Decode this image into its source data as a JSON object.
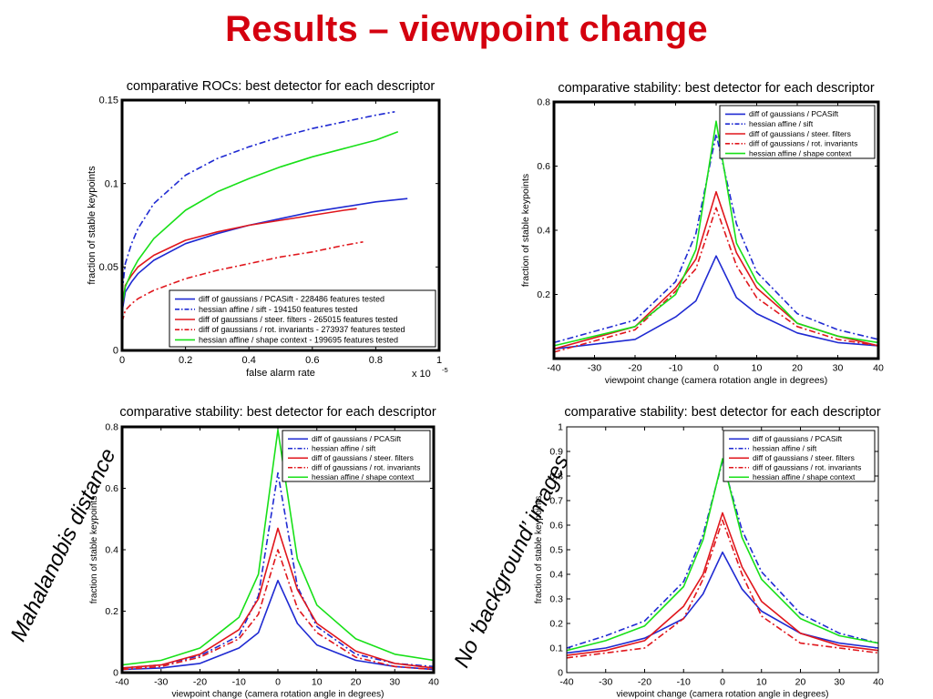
{
  "slide": {
    "title": "Results – viewpoint change",
    "note_left": "Mahalanobis distance",
    "note_right": "No ‘background’ images"
  },
  "colors": {
    "title_red": "#d4000f",
    "blue": "#1f2ad2",
    "red": "#e0161c",
    "green": "#18e018",
    "axis": "#000000"
  },
  "chart_data": [
    {
      "type": "line",
      "title": "comparative ROCs: best detector for each descriptor",
      "xlabel": "false alarm rate",
      "ylabel": "fraction of stable keypoints",
      "x_multiplier": "x 10",
      "x_multiplier_exp": "-5",
      "xlim": [
        0,
        1
      ],
      "ylim": [
        0,
        0.15
      ],
      "xticks": [
        0,
        0.2,
        0.4,
        0.6,
        0.8,
        1
      ],
      "xtick_labels": [
        "0",
        "0.2",
        "0.4",
        "0.6",
        "0.8",
        "1"
      ],
      "yticks": [
        0,
        0.05,
        0.1,
        0.15
      ],
      "ytick_labels": [
        "0",
        "0.05",
        "0.1",
        "0.15"
      ],
      "frame": "thick",
      "legend": "bottom-right",
      "series": [
        {
          "name": "diff of gaussians / PCASift - 228486 features tested",
          "color": "#1f2ad2",
          "dash": "solid",
          "x": [
            0,
            0.01,
            0.03,
            0.05,
            0.1,
            0.2,
            0.3,
            0.4,
            0.5,
            0.6,
            0.7,
            0.8,
            0.9
          ],
          "y": [
            0.023,
            0.035,
            0.041,
            0.046,
            0.054,
            0.064,
            0.07,
            0.075,
            0.079,
            0.083,
            0.086,
            0.089,
            0.091
          ]
        },
        {
          "name": "hessian affine / sift - 194150 features tested",
          "color": "#1f2ad2",
          "dash": "dashdot",
          "x": [
            0,
            0.01,
            0.03,
            0.05,
            0.1,
            0.2,
            0.3,
            0.4,
            0.5,
            0.6,
            0.7,
            0.8,
            0.86
          ],
          "y": [
            0.035,
            0.052,
            0.064,
            0.073,
            0.088,
            0.105,
            0.115,
            0.122,
            0.128,
            0.133,
            0.137,
            0.141,
            0.143
          ]
        },
        {
          "name": "diff of gaussians / steer. filters - 265015 features tested",
          "color": "#e0161c",
          "dash": "solid",
          "x": [
            0,
            0.01,
            0.03,
            0.05,
            0.1,
            0.2,
            0.3,
            0.4,
            0.5,
            0.6,
            0.7,
            0.74
          ],
          "y": [
            0.025,
            0.039,
            0.045,
            0.05,
            0.057,
            0.066,
            0.071,
            0.075,
            0.078,
            0.081,
            0.084,
            0.085
          ]
        },
        {
          "name": "diff of gaussians / rot. invariants - 273937 features tested",
          "color": "#e0161c",
          "dash": "dashdot",
          "x": [
            0,
            0.01,
            0.03,
            0.05,
            0.1,
            0.2,
            0.3,
            0.4,
            0.5,
            0.6,
            0.7,
            0.76
          ],
          "y": [
            0.017,
            0.024,
            0.028,
            0.031,
            0.036,
            0.043,
            0.048,
            0.052,
            0.056,
            0.059,
            0.063,
            0.065
          ]
        },
        {
          "name": "hessian affine / shape context - 199695 features tested",
          "color": "#18e018",
          "dash": "solid",
          "x": [
            0,
            0.01,
            0.03,
            0.05,
            0.1,
            0.2,
            0.3,
            0.4,
            0.5,
            0.6,
            0.7,
            0.8,
            0.87
          ],
          "y": [
            0.026,
            0.038,
            0.047,
            0.054,
            0.067,
            0.084,
            0.095,
            0.103,
            0.11,
            0.116,
            0.121,
            0.126,
            0.131
          ]
        }
      ]
    },
    {
      "type": "line",
      "title": "comparative stability: best detector for each descriptor",
      "xlabel": "viewpoint change (camera rotation angle in degrees)",
      "ylabel": "fraction of stable keypoints",
      "xlim": [
        -40,
        40
      ],
      "ylim": [
        0,
        0.8
      ],
      "xticks": [
        -40,
        -30,
        -20,
        -10,
        0,
        10,
        20,
        30,
        40
      ],
      "xtick_labels": [
        "-40",
        "-30",
        "-20",
        "-10",
        "0",
        "10",
        "20",
        "30",
        "40"
      ],
      "yticks": [
        0.2,
        0.4,
        0.6,
        0.8
      ],
      "ytick_labels": [
        "0.2",
        "0.4",
        "0.6",
        "0.8"
      ],
      "frame": "thick",
      "legend": "top-right",
      "x": [
        -40,
        -20,
        -10,
        -5,
        0,
        5,
        10,
        20,
        30,
        40
      ],
      "series": [
        {
          "name": "diff of gaussians / PCASift",
          "color": "#1f2ad2",
          "dash": "solid",
          "y": [
            0.03,
            0.06,
            0.13,
            0.18,
            0.32,
            0.19,
            0.14,
            0.08,
            0.05,
            0.04
          ]
        },
        {
          "name": "hessian affine / sift",
          "color": "#1f2ad2",
          "dash": "dashdot",
          "y": [
            0.05,
            0.12,
            0.24,
            0.39,
            0.7,
            0.42,
            0.27,
            0.14,
            0.09,
            0.06
          ]
        },
        {
          "name": "diff of gaussians / steer. filters",
          "color": "#e0161c",
          "dash": "solid",
          "y": [
            0.03,
            0.1,
            0.22,
            0.31,
            0.52,
            0.33,
            0.22,
            0.11,
            0.07,
            0.04
          ]
        },
        {
          "name": "diff of gaussians / rot. invariants",
          "color": "#e0161c",
          "dash": "dashdot",
          "y": [
            0.02,
            0.09,
            0.21,
            0.28,
            0.47,
            0.29,
            0.19,
            0.1,
            0.06,
            0.04
          ]
        },
        {
          "name": "hessian affine / shape context",
          "color": "#18e018",
          "dash": "solid",
          "y": [
            0.04,
            0.1,
            0.2,
            0.34,
            0.74,
            0.36,
            0.24,
            0.11,
            0.07,
            0.05
          ]
        }
      ]
    },
    {
      "type": "line",
      "title": "comparative stability: best detector for each descriptor",
      "xlabel": "viewpoint change (camera rotation angle in degrees)",
      "ylabel": "fraction of stable keypoints",
      "xlim": [
        -40,
        40
      ],
      "ylim": [
        0,
        0.8
      ],
      "xticks": [
        -40,
        -30,
        -20,
        -10,
        0,
        10,
        20,
        30,
        40
      ],
      "xtick_labels": [
        "-40",
        "-30",
        "-20",
        "-10",
        "0",
        "10",
        "20",
        "30",
        "40"
      ],
      "yticks": [
        0,
        0.2,
        0.4,
        0.6,
        0.8
      ],
      "ytick_labels": [
        "0",
        "0.2",
        "0.4",
        "0.6",
        "0.8"
      ],
      "frame": "thick",
      "legend": "top-right",
      "x": [
        -40,
        -30,
        -20,
        -10,
        -5,
        0,
        5,
        10,
        20,
        30,
        40
      ],
      "series": [
        {
          "name": "diff of gaussians / PCASift",
          "color": "#1f2ad2",
          "dash": "solid",
          "y": [
            0.01,
            0.015,
            0.03,
            0.08,
            0.13,
            0.3,
            0.16,
            0.09,
            0.04,
            0.02,
            0.01
          ]
        },
        {
          "name": "hessian affine / sift",
          "color": "#1f2ad2",
          "dash": "dashdot",
          "y": [
            0.015,
            0.025,
            0.055,
            0.12,
            0.25,
            0.65,
            0.28,
            0.15,
            0.06,
            0.03,
            0.02
          ]
        },
        {
          "name": "diff of gaussians / steer. filters",
          "color": "#e0161c",
          "dash": "solid",
          "y": [
            0.015,
            0.025,
            0.06,
            0.14,
            0.24,
            0.47,
            0.27,
            0.16,
            0.07,
            0.03,
            0.015
          ]
        },
        {
          "name": "diff of gaussians / rot. invariants",
          "color": "#e0161c",
          "dash": "dashdot",
          "y": [
            0.01,
            0.02,
            0.05,
            0.11,
            0.19,
            0.4,
            0.21,
            0.13,
            0.05,
            0.02,
            0.01
          ]
        },
        {
          "name": "hessian affine / shape context",
          "color": "#18e018",
          "dash": "solid",
          "y": [
            0.025,
            0.04,
            0.08,
            0.18,
            0.32,
            0.79,
            0.37,
            0.22,
            0.11,
            0.06,
            0.04
          ]
        }
      ]
    },
    {
      "type": "line",
      "title": "comparative stability: best detector for each descriptor",
      "xlabel": "viewpoint change (camera rotation angle in degrees)",
      "ylabel": "fraction of stable keypoints",
      "xlim": [
        -40,
        40
      ],
      "ylim": [
        0,
        1
      ],
      "xticks": [
        -40,
        -30,
        -20,
        -10,
        0,
        10,
        20,
        30,
        40
      ],
      "xtick_labels": [
        "-40",
        "-30",
        "-20",
        "-10",
        "0",
        "10",
        "20",
        "30",
        "40"
      ],
      "yticks": [
        0,
        0.1,
        0.2,
        0.3,
        0.4,
        0.5,
        0.6,
        0.7,
        0.8,
        0.9,
        1
      ],
      "ytick_labels": [
        "0",
        "0.1",
        "0.2",
        "0.3",
        "0.4",
        "0.5",
        "0.6",
        "0.7",
        "0.8",
        "0.9",
        "1"
      ],
      "frame": "thin",
      "legend": "top-right",
      "x": [
        -40,
        -30,
        -20,
        -10,
        -5,
        0,
        5,
        10,
        20,
        30,
        40
      ],
      "series": [
        {
          "name": "diff of gaussians / PCASift",
          "color": "#1f2ad2",
          "dash": "solid",
          "y": [
            0.08,
            0.1,
            0.14,
            0.22,
            0.32,
            0.49,
            0.34,
            0.25,
            0.16,
            0.12,
            0.1
          ]
        },
        {
          "name": "hessian affine / sift",
          "color": "#1f2ad2",
          "dash": "dashdot",
          "y": [
            0.1,
            0.15,
            0.21,
            0.37,
            0.56,
            0.86,
            0.58,
            0.41,
            0.24,
            0.16,
            0.12
          ]
        },
        {
          "name": "diff of gaussians / steer. filters",
          "color": "#e0161c",
          "dash": "solid",
          "y": [
            0.07,
            0.09,
            0.13,
            0.27,
            0.4,
            0.65,
            0.43,
            0.29,
            0.16,
            0.11,
            0.09
          ]
        },
        {
          "name": "diff of gaussians / rot. invariants",
          "color": "#e0161c",
          "dash": "dashdot",
          "y": [
            0.06,
            0.08,
            0.1,
            0.22,
            0.38,
            0.62,
            0.4,
            0.23,
            0.12,
            0.1,
            0.08
          ]
        },
        {
          "name": "hessian affine / shape context",
          "color": "#18e018",
          "dash": "solid",
          "y": [
            0.09,
            0.13,
            0.19,
            0.35,
            0.54,
            0.87,
            0.55,
            0.38,
            0.22,
            0.15,
            0.12
          ]
        }
      ]
    }
  ]
}
